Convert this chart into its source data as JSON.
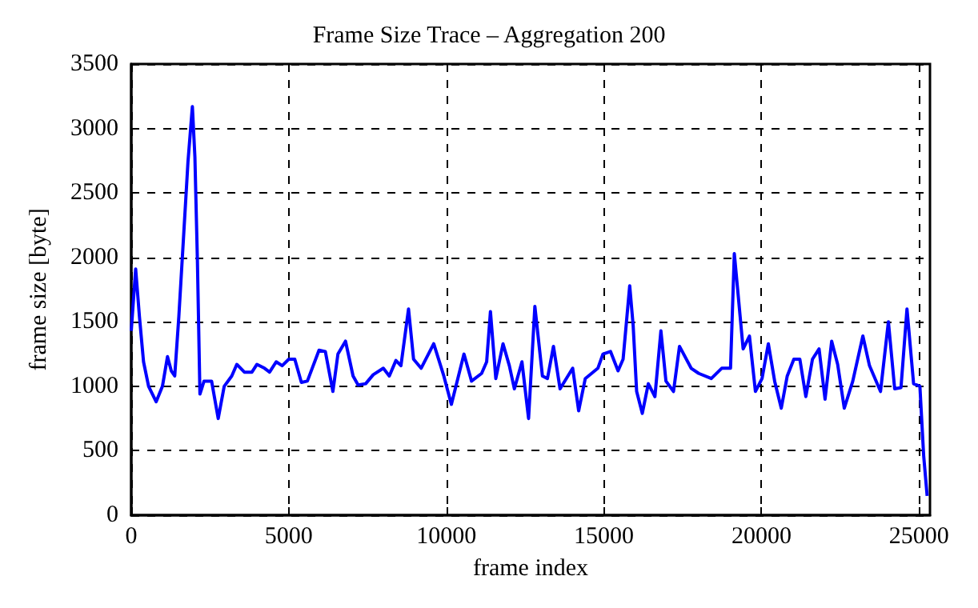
{
  "chart_data": {
    "type": "line",
    "title": "Frame Size Trace – Aggregation 200",
    "xlabel": "frame index",
    "ylabel": "frame size [byte]",
    "xlim": [
      0,
      25350
    ],
    "ylim": [
      0,
      3500
    ],
    "xticks": [
      0,
      5000,
      10000,
      15000,
      20000,
      25000
    ],
    "yticks": [
      0,
      500,
      1000,
      1500,
      2000,
      2500,
      3000,
      3500
    ],
    "grid": true,
    "marker": "none",
    "line_style": "solid",
    "series": [
      {
        "color": "#0000ff",
        "x": [
          0,
          140,
          260,
          390,
          550,
          790,
          990,
          1150,
          1270,
          1380,
          1510,
          1670,
          1800,
          1940,
          2020,
          2100,
          2180,
          2310,
          2550,
          2760,
          2950,
          3190,
          3350,
          3590,
          3830,
          3990,
          4230,
          4390,
          4600,
          4790,
          5000,
          5190,
          5400,
          5590,
          5960,
          6160,
          6400,
          6560,
          6800,
          7040,
          7200,
          7440,
          7680,
          8000,
          8190,
          8400,
          8560,
          8800,
          8960,
          9200,
          9600,
          9920,
          10160,
          10560,
          10800,
          11120,
          11280,
          11400,
          11570,
          11800,
          12000,
          12160,
          12400,
          12610,
          12810,
          13050,
          13210,
          13400,
          13610,
          14010,
          14200,
          14410,
          14810,
          14970,
          15210,
          15450,
          15610,
          15820,
          15930,
          16040,
          16220,
          16410,
          16620,
          16810,
          16970,
          17210,
          17400,
          17770,
          18010,
          18410,
          18740,
          19020,
          19140,
          19250,
          19420,
          19620,
          19810,
          20020,
          20220,
          20420,
          20630,
          20820,
          21030,
          21220,
          21410,
          21620,
          21830,
          22020,
          22230,
          22420,
          22630,
          22900,
          23220,
          23430,
          23780,
          24030,
          24230,
          24430,
          24620,
          24830,
          25030,
          25150,
          25260
        ],
        "values": [
          1430,
          1910,
          1540,
          1190,
          1000,
          880,
          1000,
          1230,
          1120,
          1080,
          1540,
          2200,
          2740,
          3170,
          2780,
          1970,
          940,
          1040,
          1040,
          750,
          1000,
          1080,
          1170,
          1110,
          1110,
          1170,
          1140,
          1110,
          1190,
          1160,
          1210,
          1210,
          1030,
          1040,
          1280,
          1270,
          960,
          1250,
          1350,
          1080,
          1010,
          1020,
          1090,
          1140,
          1080,
          1200,
          1160,
          1600,
          1210,
          1140,
          1330,
          1080,
          860,
          1250,
          1040,
          1100,
          1190,
          1580,
          1060,
          1330,
          1160,
          980,
          1190,
          750,
          1620,
          1080,
          1060,
          1310,
          980,
          1140,
          810,
          1060,
          1140,
          1250,
          1270,
          1120,
          1210,
          1780,
          1470,
          960,
          790,
          1020,
          920,
          1430,
          1040,
          960,
          1310,
          1140,
          1100,
          1060,
          1140,
          1140,
          2030,
          1740,
          1290,
          1390,
          960,
          1060,
          1330,
          1040,
          830,
          1080,
          1210,
          1210,
          920,
          1210,
          1290,
          900,
          1350,
          1170,
          830,
          1040,
          1390,
          1160,
          960,
          1500,
          980,
          990,
          1600,
          1020,
          1000,
          460,
          150
        ]
      }
    ]
  }
}
